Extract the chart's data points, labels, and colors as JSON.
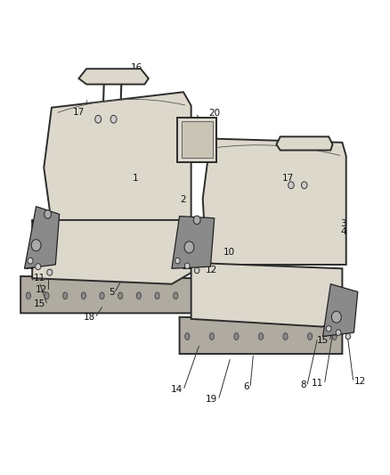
{
  "title": "",
  "background_color": "#ffffff",
  "line_color": "#2c2c2c",
  "text_color": "#1a1a1a",
  "figsize": [
    4.38,
    5.33
  ],
  "dpi": 100,
  "seat_fc": "#ddd8cc",
  "seat_ec": "#2c2c2c",
  "seat_fc2": "#c8c3b5",
  "base_fc": "#b0aba0",
  "hinge_fc": "#8a8a8a",
  "hinge_ec": "#222222",
  "bolt_fc": "#888888",
  "screw_fc": "#cccccc",
  "callout_color": "#333333",
  "seam_color": "#555555",
  "font_size": 7.5,
  "lw_main": 1.4,
  "lw_detail": 0.9,
  "lw_thin": 0.6
}
